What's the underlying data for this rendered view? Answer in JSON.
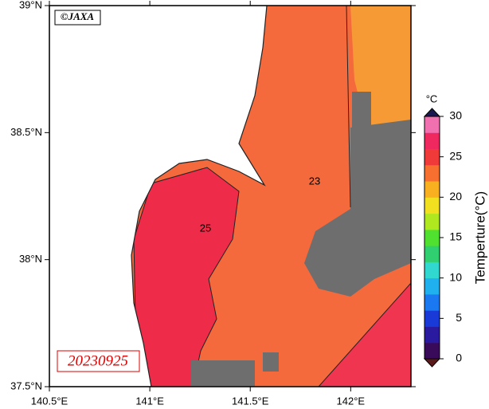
{
  "map": {
    "credit": "©JAXA",
    "date": "20230925",
    "lonlim": [
      140.5,
      142.3
    ],
    "latlim": [
      37.5,
      39
    ],
    "lon_ticks": [
      {
        "value": 140.5,
        "label": "140.5°E"
      },
      {
        "value": 141,
        "label": "141°E"
      },
      {
        "value": 141.5,
        "label": "141.5°E"
      },
      {
        "value": 142,
        "label": "142°E"
      }
    ],
    "lat_ticks": [
      {
        "value": 37.5,
        "label": "37.5°N"
      },
      {
        "value": 38,
        "label": "38°N"
      },
      {
        "value": 38.5,
        "label": "38.5°N"
      },
      {
        "value": 39,
        "label": "39°N"
      }
    ],
    "contour_labels": [
      "25",
      "23"
    ]
  },
  "colorbar": {
    "unit": "°C",
    "title": "Temperture(°C)",
    "lim": [
      0,
      30
    ],
    "ticks": [
      0,
      5,
      10,
      15,
      20,
      25,
      30
    ],
    "colors": [
      "#3a0a5a",
      "#2a1aa0",
      "#1a3ad8",
      "#1a78f0",
      "#20b0f0",
      "#30d8d0",
      "#30d070",
      "#50e030",
      "#b0e820",
      "#f0e020",
      "#f8b020",
      "#f87030",
      "#f03a3a",
      "#f02860",
      "#f070b0"
    ]
  }
}
